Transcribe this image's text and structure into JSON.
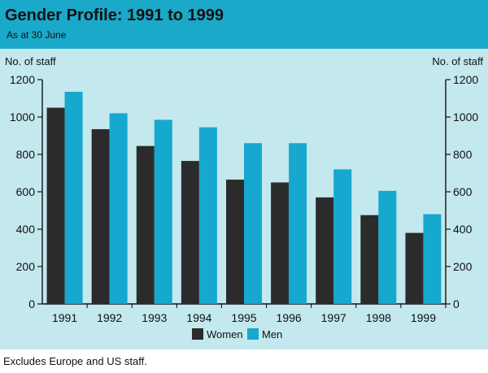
{
  "chart_data": {
    "type": "bar",
    "title": "Gender Profile: 1991 to 1999",
    "subtitle": "As at 30 June",
    "ylabel_left": "No. of staff",
    "ylabel_right": "No. of staff",
    "ylim": [
      0,
      1200
    ],
    "yticks": [
      0,
      200,
      400,
      600,
      800,
      1000,
      1200
    ],
    "categories": [
      "1991",
      "1992",
      "1993",
      "1994",
      "1995",
      "1996",
      "1997",
      "1998",
      "1999"
    ],
    "series": [
      {
        "name": "Women",
        "color": "#2b2b2b",
        "values": [
          1050,
          935,
          845,
          765,
          665,
          650,
          570,
          475,
          380
        ]
      },
      {
        "name": "Men",
        "color": "#16a8cf",
        "values": [
          1135,
          1020,
          985,
          945,
          860,
          860,
          720,
          605,
          480
        ]
      }
    ],
    "legend_position": "bottom-center",
    "footnote": "Excludes Europe and US staff."
  },
  "colors": {
    "panel_bg": "#c3e8ee",
    "title_bar": "#1aa9c9",
    "axis": "#111111"
  }
}
